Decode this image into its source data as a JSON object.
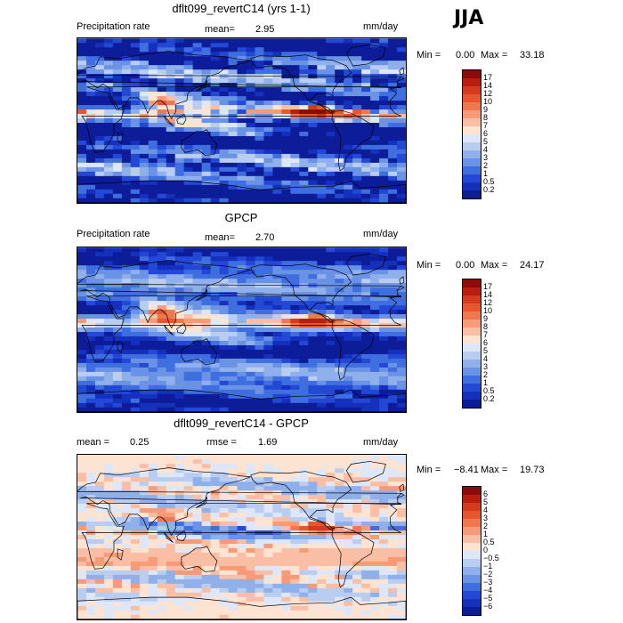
{
  "season": "JJA",
  "panels": [
    {
      "id": "model",
      "title": "dflt099_revertC14 (yrs 1-1)",
      "left_label": "Precipitation rate",
      "stat1_label": "mean=",
      "stat1_value": "2.95",
      "stat2_label": "",
      "stat2_value": "",
      "units": "mm/day",
      "min_label": "Min =",
      "min_value": "0.00",
      "max_label": "Max =",
      "max_value": "33.18",
      "colorbar": {
        "levels": [
          "17",
          "14",
          "12",
          "10",
          "9",
          "8",
          "7",
          "6",
          "5",
          "4",
          "3",
          "2",
          "1",
          "0.5",
          "0.2"
        ],
        "colors": [
          "#8c0a0a",
          "#b91d10",
          "#d63a1c",
          "#e8552e",
          "#f0784f",
          "#f69a78",
          "#fabea4",
          "#fde3d2",
          "#dde7f7",
          "#b9cdf1",
          "#8fb0ea",
          "#6a93e6",
          "#3f6ee0",
          "#2448d6",
          "#1430bd",
          "#0d1c99"
        ]
      },
      "field": "model"
    },
    {
      "id": "obs",
      "title": "GPCP",
      "left_label": "Precipitation rate",
      "stat1_label": "mean=",
      "stat1_value": "2.70",
      "stat2_label": "",
      "stat2_value": "",
      "units": "mm/day",
      "min_label": "Min =",
      "min_value": "0.00",
      "max_label": "Max =",
      "max_value": "24.17",
      "colorbar": {
        "levels": [
          "17",
          "14",
          "12",
          "10",
          "9",
          "8",
          "7",
          "6",
          "5",
          "4",
          "3",
          "2",
          "1",
          "0.5",
          "0.2"
        ],
        "colors": [
          "#8c0a0a",
          "#b91d10",
          "#d63a1c",
          "#e8552e",
          "#f0784f",
          "#f69a78",
          "#fabea4",
          "#fde3d2",
          "#dde7f7",
          "#b9cdf1",
          "#8fb0ea",
          "#6a93e6",
          "#3f6ee0",
          "#2448d6",
          "#1430bd",
          "#0d1c99"
        ]
      },
      "field": "obs"
    },
    {
      "id": "diff",
      "title": "dflt099_revertC14 - GPCP",
      "left_label": "",
      "stat1_label": "mean =",
      "stat1_value": "0.25",
      "stat2_label": "rmse =",
      "stat2_value": "1.69",
      "units": "mm/day",
      "min_label": "Min =",
      "min_value": "−8.41",
      "max_label": "Max =",
      "max_value": "19.73",
      "colorbar": {
        "levels": [
          "6",
          "5",
          "4",
          "3",
          "2",
          "1",
          "0.5",
          "0",
          "−0.5",
          "−1",
          "−2",
          "−3",
          "−4",
          "−5",
          "−6"
        ],
        "colors": [
          "#8c0a0a",
          "#b91d10",
          "#d63a1c",
          "#e8552e",
          "#f0784f",
          "#f69a78",
          "#fabea4",
          "#fde3d2",
          "#dde7f7",
          "#b9cdf1",
          "#8fb0ea",
          "#6a93e6",
          "#3f6ee0",
          "#2448d6",
          "#1430bd",
          "#0d1c99"
        ]
      },
      "field": "diff"
    }
  ]
}
